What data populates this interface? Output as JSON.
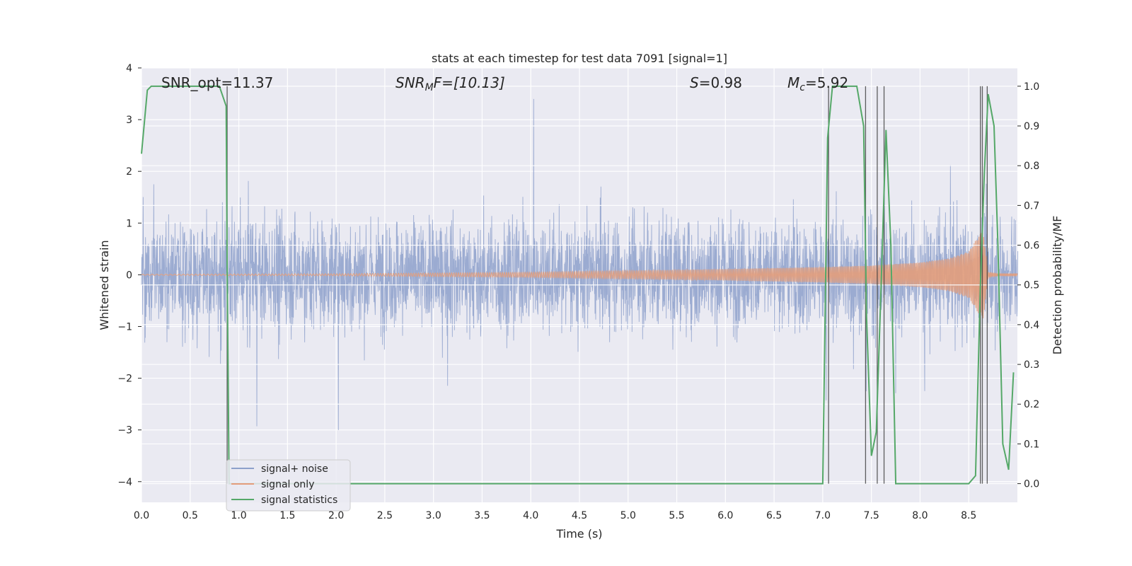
{
  "chart_data": {
    "type": "line",
    "title": "stats at each timestep for test data 7091 [signal=1]",
    "xlabel": "Time (s)",
    "ylabel": "Whitened strain",
    "ylabel_right": "Detection probability/MF",
    "xlim": [
      0.0,
      9.0
    ],
    "ylim": [
      -4.4,
      4.0
    ],
    "ylim_right": [
      -0.047,
      1.046
    ],
    "x_ticks": [
      "0.0",
      "0.5",
      "1.0",
      "1.5",
      "2.0",
      "2.5",
      "3.0",
      "3.5",
      "4.0",
      "4.5",
      "5.0",
      "5.5",
      "6.0",
      "6.5",
      "7.0",
      "7.5",
      "8.0",
      "8.5"
    ],
    "y_ticks": [
      "4",
      "3",
      "2",
      "1",
      "0",
      "−1",
      "−2",
      "−3",
      "−4"
    ],
    "y_ticks_right": [
      "1.0",
      "0.9",
      "0.8",
      "0.7",
      "0.6",
      "0.5",
      "0.4",
      "0.3",
      "0.2",
      "0.1",
      "0.0"
    ],
    "annotations": {
      "snr_opt": "SNR_opt=11.37",
      "snr_mf_main": "SNR",
      "snr_mf_sub": "M",
      "snr_mf_rest": "F=[10.13]",
      "s_main": "S",
      "s_rest": "=0.98",
      "mc_main": "M",
      "mc_sub": "c",
      "mc_rest": "=5.92"
    },
    "series": [
      {
        "name": "signal+ noise",
        "color": "#8da0cb",
        "description_values": "dense whitened noise, amplitude mostly within ±1.8 with spikes to about ±3.5"
      },
      {
        "name": "signal only",
        "color": "#e39d7b",
        "envelope": {
          "x": [
            0.0,
            2.0,
            4.0,
            5.0,
            6.0,
            7.0,
            7.5,
            8.0,
            8.3,
            8.5,
            8.6,
            8.65,
            8.7,
            8.8,
            9.0
          ],
          "amp": [
            0.01,
            0.02,
            0.05,
            0.08,
            0.11,
            0.15,
            0.18,
            0.24,
            0.32,
            0.45,
            0.75,
            0.85,
            0.05,
            0.02,
            0.02
          ]
        }
      },
      {
        "name": "signal statistics",
        "color": "#55a868",
        "x": [
          0.0,
          0.06,
          0.1,
          0.8,
          0.87,
          0.88,
          0.9,
          1.0,
          7.0,
          7.05,
          7.1,
          7.15,
          7.2,
          7.35,
          7.42,
          7.45,
          7.5,
          7.55,
          7.6,
          7.65,
          7.7,
          7.75,
          8.0,
          8.1,
          8.5,
          8.57,
          8.62,
          8.66,
          8.7,
          8.76,
          8.8,
          8.85,
          8.91,
          8.96
        ],
        "y": [
          0.83,
          0.99,
          1.0,
          1.0,
          0.95,
          0.55,
          0.0,
          0.0,
          0.0,
          0.87,
          1.0,
          1.0,
          1.0,
          1.0,
          0.9,
          0.42,
          0.07,
          0.13,
          0.5,
          0.89,
          0.6,
          0.0,
          0.0,
          0.0,
          0.0,
          0.02,
          0.5,
          0.78,
          0.98,
          0.9,
          0.6,
          0.1,
          0.035,
          0.28
        ]
      }
    ],
    "vlines_x": [
      0.88,
      7.06,
      7.44,
      7.56,
      7.63,
      8.62,
      8.64,
      8.69
    ],
    "legend": {
      "placement": "lower-left",
      "entries": [
        "signal+ noise",
        "signal only",
        "signal statistics"
      ]
    },
    "grid": true
  }
}
